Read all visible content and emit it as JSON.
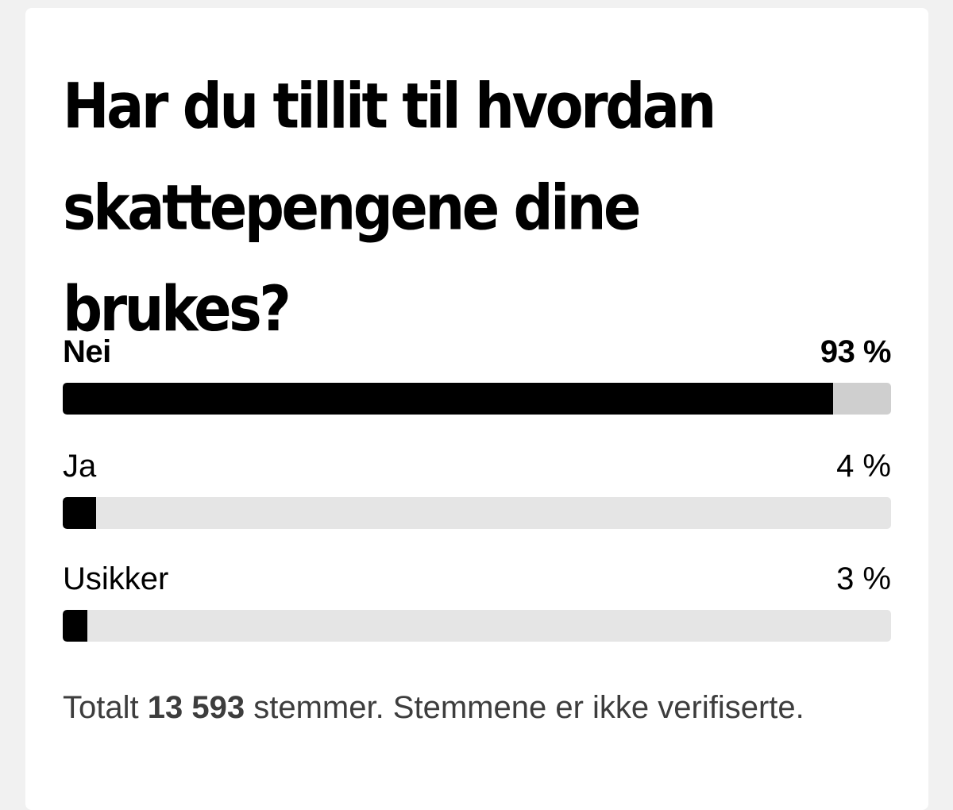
{
  "poll": {
    "question": "Har du tillit til hvordan skattepengene dine brukes?",
    "options": [
      {
        "label": "Nei",
        "percent_text": "93 %",
        "percent": 93
      },
      {
        "label": "Ja",
        "percent_text": "4 %",
        "percent": 4
      },
      {
        "label": "Usikker",
        "percent_text": "3 %",
        "percent": 3
      }
    ],
    "footer": {
      "prefix": "Totalt",
      "total_votes": "13 593",
      "suffix": "stemmer. Stemmene er ikke verifiserte."
    }
  },
  "colors": {
    "bar_fill": "#000000",
    "track_leading": "#cfcfcf",
    "track": "#e5e5e5",
    "footer_text": "#3d3d3d"
  }
}
